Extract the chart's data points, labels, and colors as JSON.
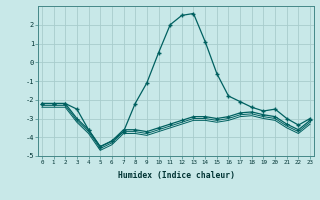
{
  "xlabel": "Humidex (Indice chaleur)",
  "background_color": "#c8e8e8",
  "grid_color": "#a8cccc",
  "line_color": "#006060",
  "x_values": [
    0,
    1,
    2,
    3,
    4,
    5,
    6,
    7,
    8,
    9,
    10,
    11,
    12,
    13,
    14,
    15,
    16,
    17,
    18,
    19,
    20,
    21,
    22,
    23
  ],
  "line1": [
    -2.2,
    -2.2,
    -2.2,
    -2.5,
    -3.6,
    -4.5,
    -4.2,
    -3.7,
    -2.2,
    -1.1,
    0.5,
    2.0,
    2.5,
    2.6,
    1.1,
    -0.6,
    -1.8,
    -2.1,
    -2.4,
    -2.6,
    -2.5,
    -3.0,
    -3.35,
    -3.0
  ],
  "line2": [
    -2.2,
    -2.2,
    -2.2,
    -3.0,
    -3.6,
    -4.5,
    -4.2,
    -3.6,
    -3.6,
    -3.7,
    -3.5,
    -3.3,
    -3.1,
    -2.9,
    -2.9,
    -3.0,
    -2.9,
    -2.7,
    -2.65,
    -2.8,
    -2.9,
    -3.3,
    -3.6,
    -3.1
  ],
  "line3": [
    -2.3,
    -2.3,
    -2.3,
    -3.1,
    -3.7,
    -4.6,
    -4.3,
    -3.7,
    -3.7,
    -3.8,
    -3.6,
    -3.4,
    -3.2,
    -3.0,
    -3.0,
    -3.1,
    -3.0,
    -2.8,
    -2.75,
    -2.9,
    -3.0,
    -3.4,
    -3.7,
    -3.2
  ],
  "line4": [
    -2.4,
    -2.4,
    -2.4,
    -3.2,
    -3.8,
    -4.7,
    -4.4,
    -3.8,
    -3.8,
    -3.9,
    -3.7,
    -3.5,
    -3.3,
    -3.1,
    -3.1,
    -3.2,
    -3.1,
    -2.9,
    -2.85,
    -3.0,
    -3.1,
    -3.5,
    -3.8,
    -3.3
  ],
  "ylim": [
    -5,
    3
  ],
  "xlim": [
    -0.3,
    23.3
  ],
  "yticks": [
    -5,
    -4,
    -3,
    -2,
    -1,
    0,
    1,
    2
  ],
  "xticks": [
    0,
    1,
    2,
    3,
    4,
    5,
    6,
    7,
    8,
    9,
    10,
    11,
    12,
    13,
    14,
    15,
    16,
    17,
    18,
    19,
    20,
    21,
    22,
    23
  ]
}
